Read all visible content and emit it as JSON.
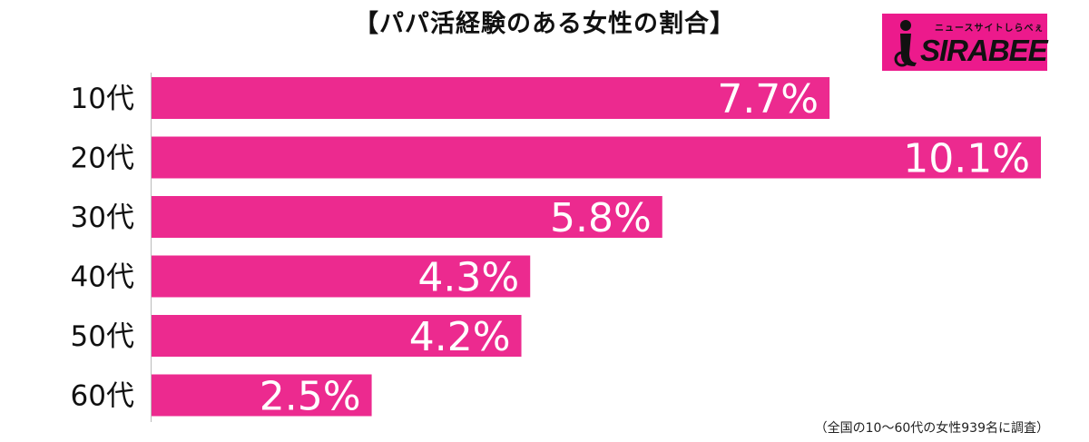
{
  "header": {
    "title": "【パパ活経験のある女性の割合】"
  },
  "logo": {
    "tagline": "ニュースサイトしらべぇ",
    "wordmark": "SIRABEE"
  },
  "footnote": "（全国の10〜60代の女性939名に調査）",
  "colors": {
    "bar": "#ec2a8f",
    "axis": "#bbbbbb",
    "label_text": "#ffffff"
  },
  "chart_data": {
    "type": "bar",
    "orientation": "horizontal",
    "categories": [
      "10代",
      "20代",
      "30代",
      "40代",
      "50代",
      "60代"
    ],
    "values": [
      7.7,
      10.1,
      5.8,
      4.3,
      4.2,
      2.5
    ],
    "value_labels": [
      "7.7%",
      "10.1%",
      "5.8%",
      "4.3%",
      "4.2%",
      "2.5%"
    ],
    "unit": "%",
    "title": "【パパ活経験のある女性の割合】",
    "xlabel": "",
    "ylabel": "",
    "xlim": [
      0,
      10.1
    ],
    "grid": false,
    "legend": "none"
  }
}
